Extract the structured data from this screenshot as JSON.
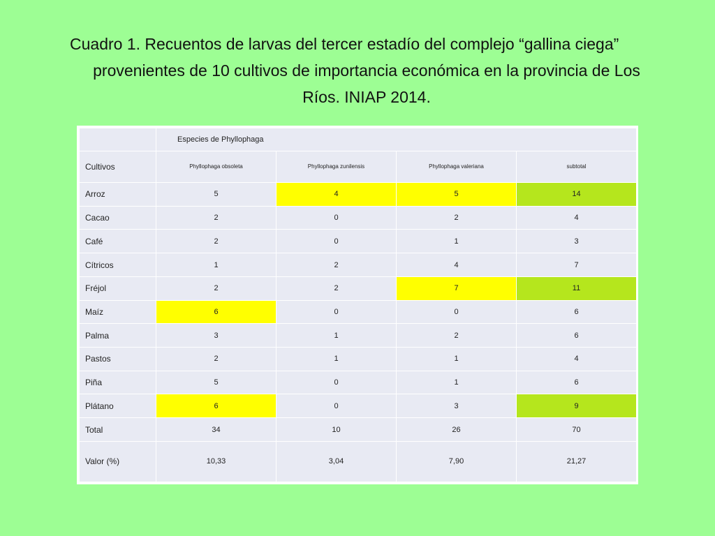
{
  "title": {
    "line1": "Cuadro 1. Recuentos de larvas del tercer estadío del complejo “gallina ciega”",
    "line2": "provenientes de 10 cultivos de importancia económica en la provincia de Los",
    "line3": "Ríos. INIAP 2014."
  },
  "table": {
    "group_header": "Especies de Phyllophaga",
    "row_header": "Cultivos",
    "columns": [
      "Phyllophaga obsoleta",
      "Phyllophaga zunilensis",
      "Phyllophaga valeriana",
      "subtotal"
    ],
    "rows": [
      {
        "label": "Arroz",
        "values": [
          "5",
          "4",
          "5",
          "14"
        ],
        "highlights": [
          "",
          "yellow",
          "yellow",
          "green"
        ]
      },
      {
        "label": "Cacao",
        "values": [
          "2",
          "0",
          "2",
          "4"
        ],
        "highlights": [
          "",
          "",
          "",
          ""
        ]
      },
      {
        "label": "Café",
        "values": [
          "2",
          "0",
          "1",
          "3"
        ],
        "highlights": [
          "",
          "",
          "",
          ""
        ]
      },
      {
        "label": "Cítricos",
        "values": [
          "1",
          "2",
          "4",
          "7"
        ],
        "highlights": [
          "",
          "",
          "",
          ""
        ]
      },
      {
        "label": "Fréjol",
        "values": [
          "2",
          "2",
          "7",
          "11"
        ],
        "highlights": [
          "",
          "",
          "yellow",
          "green"
        ]
      },
      {
        "label": "Maíz",
        "values": [
          "6",
          "0",
          "0",
          "6"
        ],
        "highlights": [
          "yellow",
          "",
          "",
          ""
        ]
      },
      {
        "label": "Palma",
        "values": [
          "3",
          "1",
          "2",
          "6"
        ],
        "highlights": [
          "",
          "",
          "",
          ""
        ]
      },
      {
        "label": "Pastos",
        "values": [
          "2",
          "1",
          "1",
          "4"
        ],
        "highlights": [
          "",
          "",
          "",
          ""
        ]
      },
      {
        "label": "Piña",
        "values": [
          "5",
          "0",
          "1",
          "6"
        ],
        "highlights": [
          "",
          "",
          "",
          ""
        ]
      },
      {
        "label": "Plátano",
        "values": [
          "6",
          "0",
          "3",
          "9"
        ],
        "highlights": [
          "yellow",
          "",
          "",
          "green"
        ]
      }
    ],
    "total": {
      "label": "Total",
      "values": [
        "34",
        "10",
        "26",
        "70"
      ]
    },
    "valor": {
      "label": "Valor (%)",
      "values": [
        "10,33",
        "3,04",
        "7,90",
        "21,27"
      ]
    }
  },
  "colors": {
    "background": "#9dfe94",
    "table_cell": "#e8eaf3",
    "highlight_yellow": "#ffff00",
    "highlight_green": "#b5e61d"
  }
}
